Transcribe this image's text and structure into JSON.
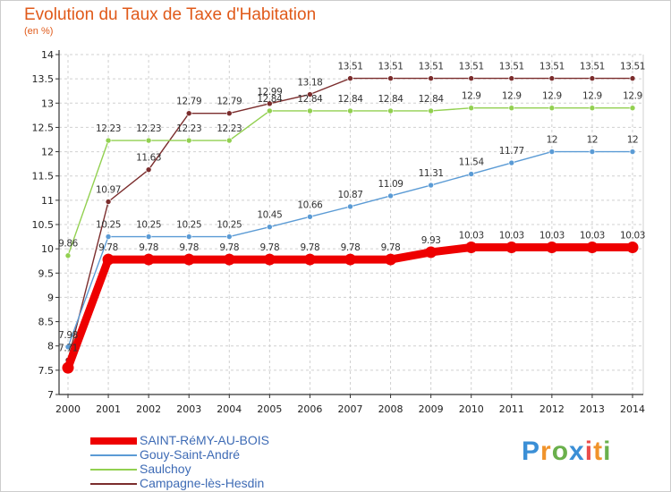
{
  "title": "Evolution du Taux de Taxe d'Habitation",
  "subtitle": "(en %)",
  "brand": {
    "text": "Proxiti",
    "letters": [
      {
        "char": "P",
        "color": "#3b8fd6"
      },
      {
        "char": "r",
        "color": "#f0932b"
      },
      {
        "char": "o",
        "color": "#6ab04c"
      },
      {
        "char": "x",
        "color": "#3b8fd6"
      },
      {
        "char": "i",
        "color": "#eb4d4b"
      },
      {
        "char": "t",
        "color": "#f0932b"
      },
      {
        "char": "i",
        "color": "#6ab04c"
      }
    ]
  },
  "chart_data": {
    "type": "line",
    "title": "Evolution du Taux de Taxe d'Habitation",
    "subtitle": "(en %)",
    "xlabel": "",
    "ylabel": "",
    "x": [
      2000,
      2001,
      2002,
      2003,
      2004,
      2005,
      2006,
      2007,
      2008,
      2009,
      2010,
      2011,
      2012,
      2013,
      2014
    ],
    "ylim": [
      7,
      14
    ],
    "yticks": [
      7,
      7.5,
      8,
      8.5,
      9,
      9.5,
      10,
      10.5,
      11,
      11.5,
      12,
      12.5,
      13,
      13.5,
      14
    ],
    "grid": true,
    "legend_position": "bottom-left",
    "series": [
      {
        "name": "SAINT-RéMY-AU-BOIS",
        "color": "#ee0000",
        "values": [
          7.55,
          9.78,
          9.78,
          9.78,
          9.78,
          9.78,
          9.78,
          9.78,
          9.78,
          9.93,
          10.03,
          10.03,
          10.03,
          10.03,
          10.03
        ],
        "labels": [
          "",
          "9.78",
          "9.78",
          "9.78",
          "9.78",
          "9.78",
          "9.78",
          "9.78",
          "9.78",
          "9.93",
          "10.03",
          "10.03",
          "10.03",
          "10.03",
          "10.03"
        ]
      },
      {
        "name": "Gouy-Saint-André",
        "color": "#5b9bd5",
        "values": [
          7.98,
          10.25,
          10.25,
          10.25,
          10.25,
          10.45,
          10.66,
          10.87,
          11.09,
          11.31,
          11.54,
          11.77,
          12,
          12,
          12
        ],
        "labels": [
          "7.98",
          "10.25",
          "10.25",
          "10.25",
          "10.25",
          "10.45",
          "10.66",
          "10.87",
          "11.09",
          "11.31",
          "11.54",
          "11.77",
          "12",
          "12",
          "12"
        ]
      },
      {
        "name": "Saulchoy",
        "color": "#92d050",
        "values": [
          9.86,
          12.23,
          12.23,
          12.23,
          12.23,
          12.84,
          12.84,
          12.84,
          12.84,
          12.84,
          12.9,
          12.9,
          12.9,
          12.9,
          12.9
        ],
        "labels": [
          "9.86",
          "12.23",
          "12.23",
          "12.23",
          "12.23",
          "12.84",
          "12.84",
          "12.84",
          "12.84",
          "12.84",
          "12.9",
          "12.9",
          "12.9",
          "12.9",
          "12.9"
        ]
      },
      {
        "name": "Campagne-lès-Hesdin",
        "color": "#7b2d2d",
        "values": [
          7.71,
          10.97,
          11.63,
          12.79,
          12.79,
          12.99,
          13.18,
          13.51,
          13.51,
          13.51,
          13.51,
          13.51,
          13.51,
          13.51,
          13.51
        ],
        "labels": [
          "7.71",
          "10.97",
          "11.63",
          "12.79",
          "12.79",
          "12.99",
          "13.18",
          "13.51",
          "13.51",
          "13.51",
          "13.51",
          "13.51",
          "13.51",
          "13.51",
          "13.51"
        ]
      }
    ]
  }
}
